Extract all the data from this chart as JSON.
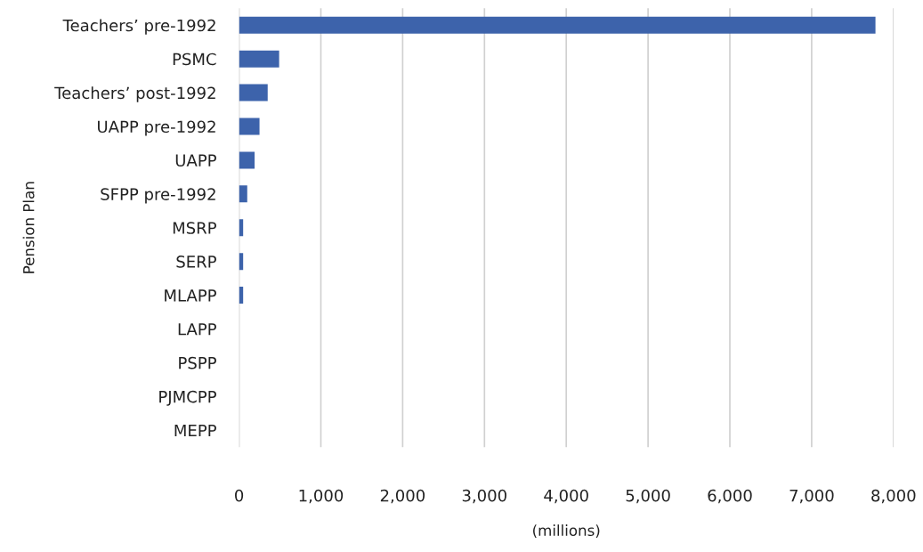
{
  "chart_data": {
    "type": "bar",
    "orientation": "horizontal",
    "xlabel": "(millions)",
    "ylabel": "Pension Plan",
    "categories": [
      "Teachers’ pre-1992",
      "PSMC",
      "Teachers’ post-1992",
      "UAPP pre-1992",
      "UAPP",
      "SFPP pre-1992",
      "MSRP",
      "SERP",
      "MLAPP",
      "LAPP",
      "PSPP",
      "PJMCPP",
      "MEPP"
    ],
    "values": [
      7780,
      490,
      350,
      250,
      190,
      100,
      50,
      50,
      50,
      0,
      0,
      0,
      0
    ],
    "color": "#3d63ab",
    "xlim": [
      0,
      8000
    ],
    "xticks": [
      0,
      {
        "value": 1000,
        "label": "1,000"
      },
      {
        "value": 2000,
        "label": "2,000"
      },
      {
        "value": 3000,
        "label": "3,000"
      },
      {
        "value": 4000,
        "label": "4,000"
      },
      {
        "value": 5000,
        "label": "5,000"
      },
      {
        "value": 6000,
        "label": "6,000"
      },
      {
        "value": 7000,
        "label": "7,000"
      },
      {
        "value": 8000,
        "label": "8,000"
      }
    ],
    "grid": "x",
    "legend": false
  }
}
